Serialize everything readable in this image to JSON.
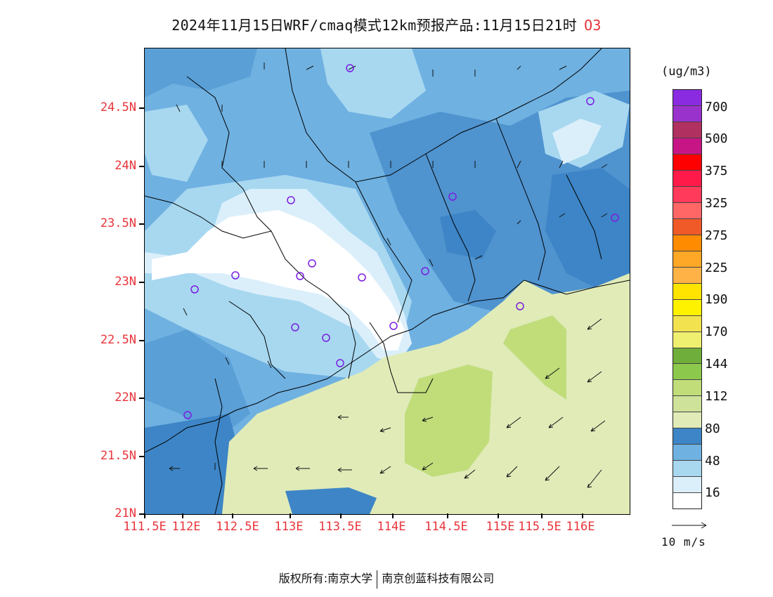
{
  "title": {
    "text": "2024年11月15日WRF/cmaq模式12km预报产品:11月15日21时",
    "pollutant": "O3"
  },
  "map": {
    "y_ticks": [
      "24.5N",
      "24N",
      "23.5N",
      "23N",
      "22.5N",
      "22N",
      "21.5N",
      "21N"
    ],
    "x_ticks": [
      "111.5E",
      "112E",
      "112.5E",
      "113E",
      "113.5E",
      "114E",
      "114.5E",
      "115E",
      "115.5E",
      "116E"
    ],
    "tick_color": "#e8343a"
  },
  "colorbar": {
    "unit": "(ug/m3)",
    "labels": [
      "700",
      "500",
      "375",
      "325",
      "275",
      "225",
      "190",
      "170",
      "144",
      "112",
      "80",
      "48",
      "16"
    ],
    "colors": [
      "#8a2be2",
      "#9932cc",
      "#b03060",
      "#c71585",
      "#ff0000",
      "#ff1a4a",
      "#ff3a5a",
      "#ff6666",
      "#f05a28",
      "#ff8c00",
      "#ffa726",
      "#ffb347",
      "#ffe400",
      "#fff200",
      "#f2e250",
      "#f0f070",
      "#6fae3a",
      "#8cc84b",
      "#c0dd7a",
      "#cfe29a",
      "#e0ebb8",
      "#3d85c6",
      "#6fb1e1",
      "#a8d8f0",
      "#dbeffb",
      "#ffffff"
    ]
  },
  "wind_reference": {
    "label": "10 m/s"
  },
  "copyright": {
    "left": "版权所有:南京大学",
    "right": "南京创蓝科技有限公司"
  }
}
